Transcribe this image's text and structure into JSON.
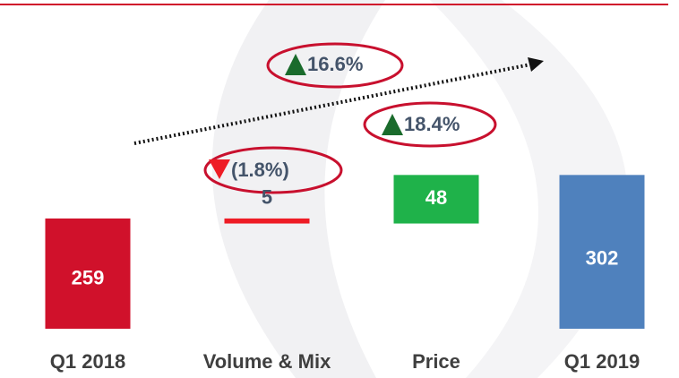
{
  "chart_data": {
    "type": "waterfall",
    "categories": [
      "Q1 2018",
      "Volume & Mix",
      "Price",
      "Q1 2019"
    ],
    "values": [
      259,
      -5,
      48,
      302
    ],
    "value_labels": [
      "259",
      "5",
      "48",
      "302"
    ],
    "colors": [
      "#d0112b",
      "#ee1c25",
      "#1fb24a",
      "#4f81bd"
    ],
    "ylim": [
      150,
      320
    ],
    "annotations": [
      {
        "text": "16.6%"
      },
      {
        "text": "18.4%"
      },
      {
        "text": "(1.8%)"
      }
    ]
  }
}
